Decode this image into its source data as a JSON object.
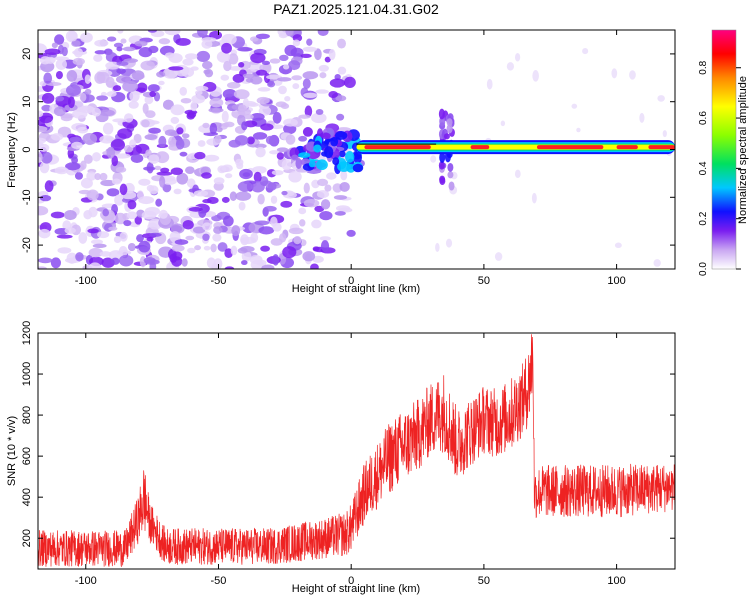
{
  "title": "PAZ1.2025.121.04.31.G02",
  "chart_data": [
    {
      "type": "heatmap",
      "xlabel": "Height of straight line (km)",
      "ylabel": "Frequency (Hz)",
      "xlim": [
        -118,
        122
      ],
      "ylim": [
        -25,
        25
      ],
      "xticks": [
        -100,
        -50,
        0,
        50,
        100
      ],
      "xtick_labels": [
        "-100",
        "-50",
        "0",
        "50",
        "100"
      ],
      "yticks": [
        -20,
        -10,
        0,
        10,
        20
      ],
      "ytick_labels": [
        "-20",
        "-10",
        "0",
        "10",
        "20"
      ],
      "colorbar": {
        "label": "Normalized spectral amplitude",
        "range": [
          0,
          0.95
        ],
        "ticks": [
          0.0,
          0.2,
          0.4,
          0.6,
          0.8
        ],
        "tick_labels": [
          "0.0",
          "0.2",
          "0.4",
          "0.6",
          "0.8"
        ],
        "colors": [
          "#ffffff",
          "#c9a6f2",
          "#7a1ef0",
          "#1010ff",
          "#00c8ff",
          "#00e060",
          "#8cff00",
          "#ffff00",
          "#ff8800",
          "#ff0000",
          "#ff0080"
        ]
      },
      "features": {
        "noise_region_x": [
          -118,
          0
        ],
        "noise_region_level": 0.05,
        "signal_line_x": [
          2,
          122
        ],
        "signal_line_freq_hz": 0.5,
        "signal_line_level": 0.9,
        "burst_x": 36,
        "burst_freq_range": [
          -8,
          8
        ]
      },
      "grid": false
    },
    {
      "type": "line",
      "xlabel": "Height of straight line (km)",
      "ylabel": "SNR (10 * v/v)",
      "xlim": [
        -118,
        122
      ],
      "ylim": [
        50,
        1200
      ],
      "xticks": [
        -100,
        -50,
        0,
        50,
        100
      ],
      "xtick_labels": [
        "-100",
        "-50",
        "0",
        "50",
        "100"
      ],
      "yticks": [
        200,
        400,
        600,
        800,
        1000,
        1200
      ],
      "ytick_labels": [
        "200",
        "400",
        "600",
        "800",
        "1000",
        "1200"
      ],
      "series_color": "#ee2222",
      "envelope": {
        "x": [
          -118,
          -100,
          -85,
          -80,
          -78,
          -76,
          -70,
          -50,
          -30,
          -10,
          -2,
          0,
          5,
          15,
          25,
          30,
          35,
          40,
          45,
          50,
          55,
          60,
          65,
          67,
          68.5,
          69,
          72,
          80,
          100,
          122
        ],
        "mean": [
          150,
          150,
          150,
          300,
          400,
          280,
          160,
          160,
          160,
          200,
          220,
          250,
          420,
          600,
          700,
          780,
          820,
          650,
          720,
          780,
          760,
          800,
          880,
          950,
          1100,
          420,
          430,
          430,
          430,
          450
        ],
        "spread": [
          90,
          90,
          90,
          120,
          180,
          100,
          90,
          90,
          90,
          100,
          110,
          120,
          150,
          180,
          180,
          180,
          200,
          180,
          170,
          170,
          170,
          180,
          180,
          200,
          220,
          130,
          130,
          130,
          130,
          120
        ]
      },
      "grid": false
    }
  ]
}
